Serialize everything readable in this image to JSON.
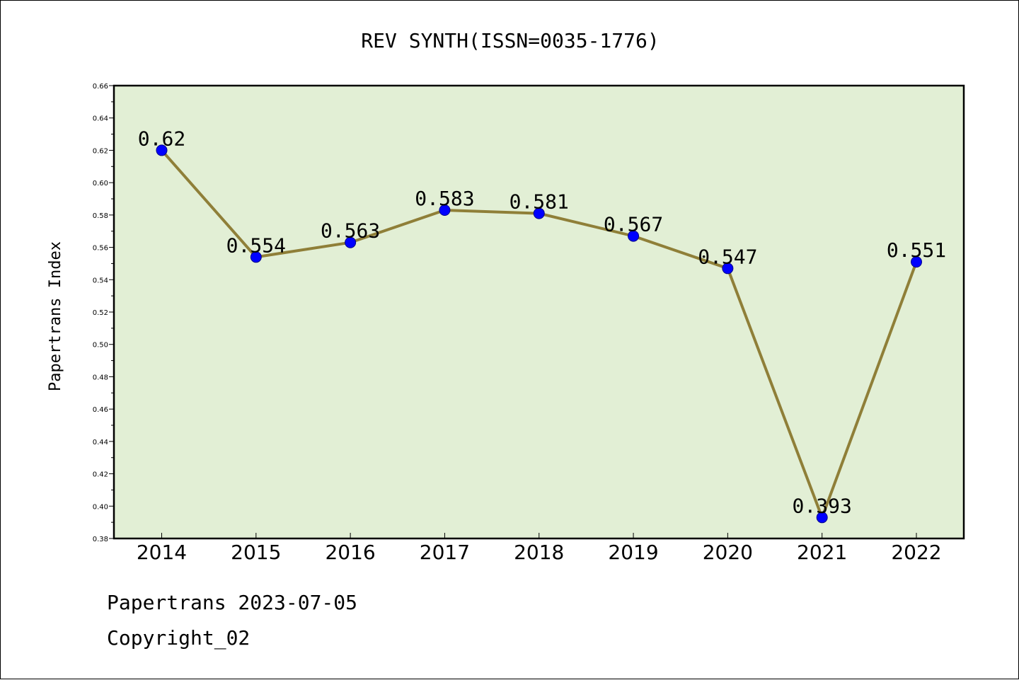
{
  "chart_data": {
    "type": "line",
    "title": "REV SYNTH(ISSN=0035-1776)",
    "xlabel": "",
    "ylabel": "Papertrans Index",
    "categories": [
      "2014",
      "2015",
      "2016",
      "2017",
      "2018",
      "2019",
      "2020",
      "2021",
      "2022"
    ],
    "values": [
      0.62,
      0.554,
      0.563,
      0.583,
      0.581,
      0.567,
      0.547,
      0.393,
      0.551
    ],
    "data_labels": [
      "0.62",
      "0.554",
      "0.563",
      "0.583",
      "0.581",
      "0.567",
      "0.547",
      "0.393",
      "0.551"
    ],
    "ylim": [
      0.38,
      0.66
    ],
    "yticks": [
      "0.38",
      "0.40",
      "0.42",
      "0.44",
      "0.46",
      "0.48",
      "0.50",
      "0.52",
      "0.54",
      "0.56",
      "0.58",
      "0.60",
      "0.62",
      "0.64",
      "0.66"
    ],
    "grid": false,
    "legend": "none",
    "colors": {
      "plot_background": "#e2efd5",
      "line": "#8f7f38",
      "marker": "#0000ff"
    }
  },
  "footer": {
    "line1": "Papertrans 2023-07-05",
    "line2": "Copyright_02"
  }
}
